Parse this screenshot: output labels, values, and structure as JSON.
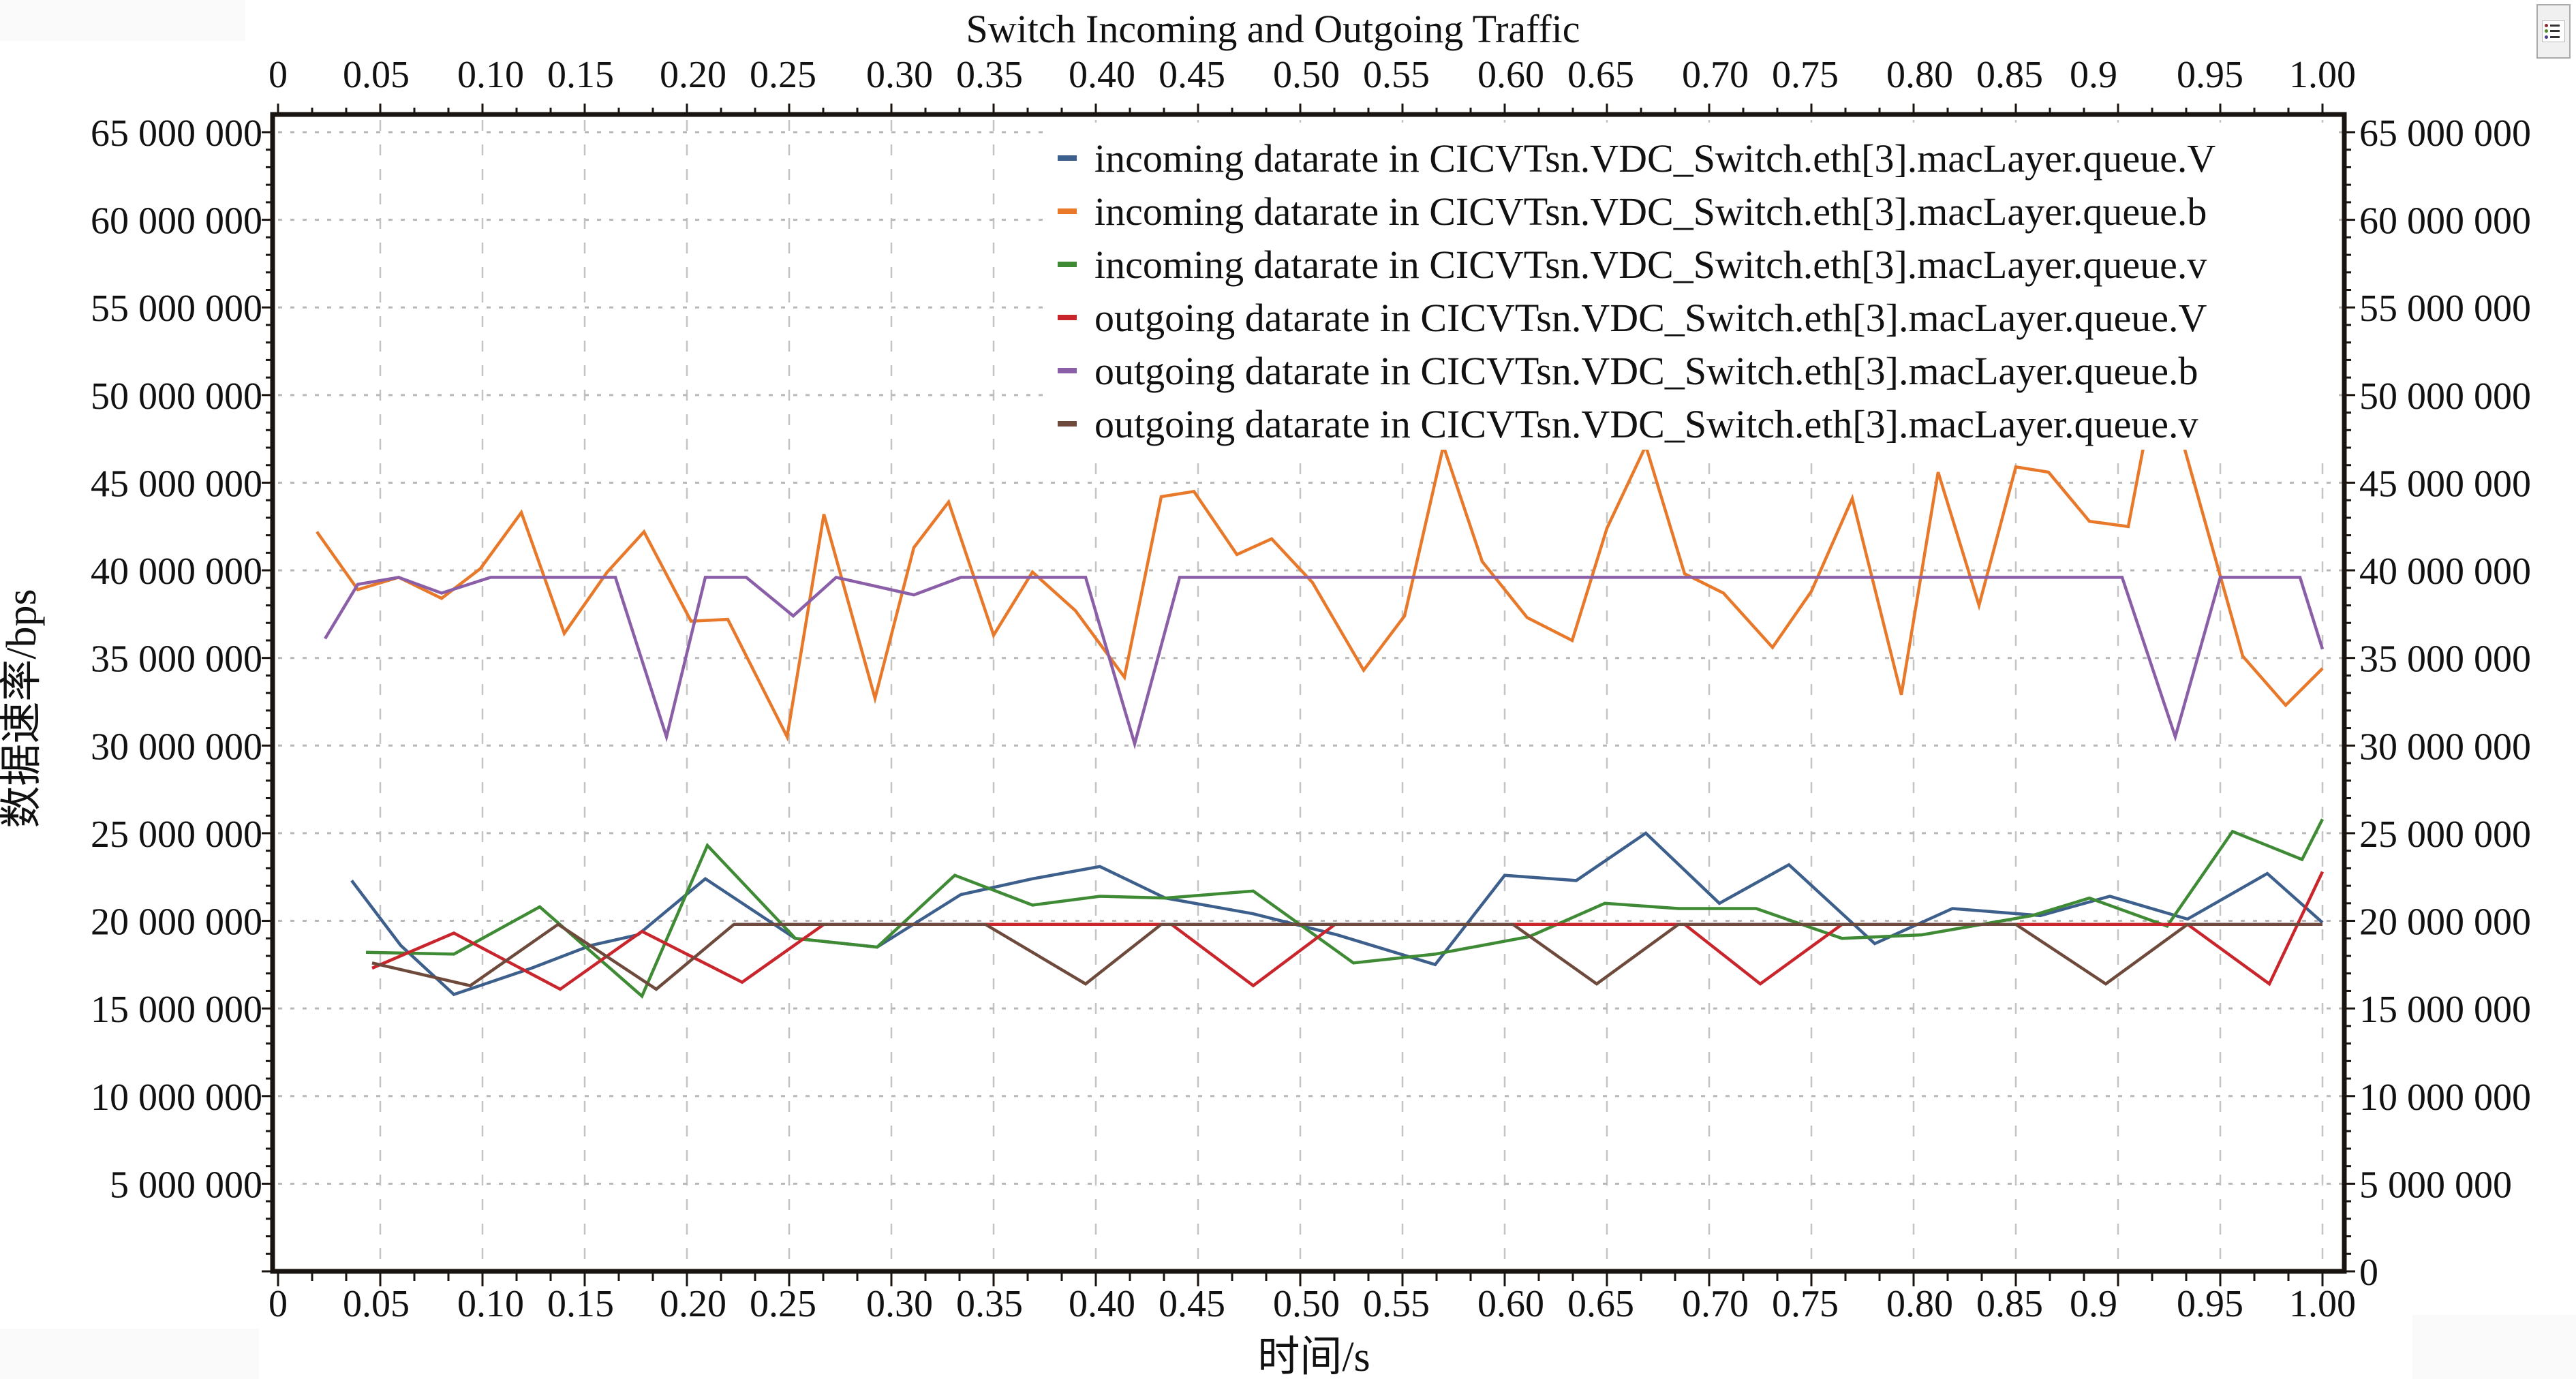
{
  "toolbar": {
    "legend_toggle_icon": "legend-list-icon"
  },
  "chart_data": {
    "type": "line",
    "title": "Switch Incoming and Outgoing Traffic",
    "xlabel": "时间/s",
    "ylabel": "数据速率/bps",
    "xlim": [
      0,
      1.0
    ],
    "ylim": [
      0,
      65000000
    ],
    "grid": true,
    "legend_position": "top-right",
    "x_tick_labels": [
      "0",
      "0.05",
      "0.10",
      "0.15",
      "0.20",
      "0.25",
      "0.30",
      "0.35",
      "0.40",
      "0.45",
      "0.50",
      "0.55",
      "0.60",
      "0.65",
      "0.70",
      "0.75",
      "0.80",
      "0.85",
      "0.9",
      "0.95",
      "1.00"
    ],
    "x_ticks": [
      0,
      0.05,
      0.1,
      0.15,
      0.2,
      0.25,
      0.3,
      0.35,
      0.4,
      0.45,
      0.5,
      0.55,
      0.6,
      0.65,
      0.7,
      0.75,
      0.8,
      0.85,
      0.9,
      0.95,
      1.0
    ],
    "x_tick_label_positions": [
      0,
      0.048,
      0.104,
      0.148,
      0.203,
      0.247,
      0.304,
      0.348,
      0.403,
      0.447,
      0.503,
      0.547,
      0.603,
      0.647,
      0.703,
      0.747,
      0.803,
      0.847,
      0.888,
      0.945,
      1.0
    ],
    "y_ticks": [
      5000000,
      10000000,
      15000000,
      20000000,
      25000000,
      30000000,
      35000000,
      40000000,
      45000000,
      50000000,
      55000000,
      60000000,
      65000000
    ],
    "y_tick_labels": [
      "5 000 000",
      "10 000 000",
      "15 000 000",
      "20 000 000",
      "25 000 000",
      "30 000 000",
      "35 000 000",
      "40 000 000",
      "45 000 000",
      "50 000 000",
      "55 000 000",
      "60 000 000",
      "65 000 000"
    ],
    "y_right_zero_label": "0",
    "series": [
      {
        "name": "incoming datarate in CICVTsn.VDC_Switch.eth[3].macLayer.queue.V",
        "color": "#3d5f8c",
        "x": [
          0.036,
          0.06,
          0.086,
          0.124,
          0.153,
          0.176,
          0.209,
          0.253,
          0.293,
          0.334,
          0.369,
          0.402,
          0.434,
          0.477,
          0.518,
          0.566,
          0.6,
          0.635,
          0.669,
          0.705,
          0.739,
          0.781,
          0.819,
          0.862,
          0.896,
          0.934,
          0.973,
          1.0
        ],
        "values": [
          22300000,
          18600000,
          15800000,
          17300000,
          18600000,
          19200000,
          22400000,
          19000000,
          18500000,
          21500000,
          22400000,
          23100000,
          21300000,
          20400000,
          19200000,
          17500000,
          22600000,
          22300000,
          25000000,
          21000000,
          23200000,
          18700000,
          20700000,
          20300000,
          21400000,
          20100000,
          22700000,
          19900000
        ]
      },
      {
        "name": "incoming datarate in CICVTsn.VDC_Switch.eth[3].macLayer.queue.b",
        "color": "#e8792a",
        "x": [
          0.019,
          0.039,
          0.059,
          0.08,
          0.099,
          0.119,
          0.14,
          0.161,
          0.179,
          0.202,
          0.22,
          0.249,
          0.267,
          0.292,
          0.311,
          0.328,
          0.35,
          0.369,
          0.39,
          0.414,
          0.432,
          0.448,
          0.469,
          0.486,
          0.506,
          0.531,
          0.551,
          0.57,
          0.589,
          0.611,
          0.633,
          0.65,
          0.669,
          0.688,
          0.707,
          0.731,
          0.75,
          0.77,
          0.794,
          0.812,
          0.832,
          0.85,
          0.866,
          0.886,
          0.905,
          0.914,
          0.93,
          0.961,
          0.982,
          1.0
        ],
        "values": [
          42200000,
          38900000,
          39600000,
          38400000,
          40100000,
          43300000,
          36400000,
          39900000,
          42200000,
          37100000,
          37200000,
          30500000,
          43200000,
          32700000,
          41300000,
          43900000,
          36300000,
          39900000,
          37700000,
          33900000,
          44200000,
          44500000,
          40900000,
          41800000,
          39300000,
          34300000,
          37400000,
          47100000,
          40500000,
          37300000,
          36000000,
          42400000,
          47100000,
          39800000,
          38700000,
          35600000,
          38800000,
          44100000,
          32900000,
          45600000,
          38000000,
          45900000,
          45600000,
          42800000,
          42500000,
          48000000,
          48000000,
          35100000,
          32300000,
          34400000
        ]
      },
      {
        "name": "incoming datarate in CICVTsn.VDC_Switch.eth[3].macLayer.queue.v",
        "color": "#3f8a34",
        "x": [
          0.043,
          0.086,
          0.128,
          0.178,
          0.21,
          0.253,
          0.293,
          0.331,
          0.369,
          0.402,
          0.434,
          0.477,
          0.526,
          0.566,
          0.612,
          0.649,
          0.685,
          0.723,
          0.765,
          0.804,
          0.858,
          0.886,
          0.924,
          0.956,
          0.99,
          1.0
        ],
        "values": [
          18200000,
          18100000,
          20800000,
          15700000,
          24300000,
          19000000,
          18500000,
          22600000,
          20900000,
          21400000,
          21300000,
          21700000,
          17600000,
          18100000,
          19100000,
          21000000,
          20700000,
          20700000,
          19000000,
          19200000,
          20300000,
          21300000,
          19700000,
          25100000,
          23500000,
          25800000
        ]
      },
      {
        "name": "outgoing datarate in CICVTsn.VDC_Switch.eth[3].macLayer.queue.V",
        "color": "#c8262c",
        "x": [
          0.046,
          0.086,
          0.138,
          0.178,
          0.227,
          0.267,
          0.437,
          0.477,
          0.517,
          0.688,
          0.725,
          0.765,
          0.934,
          0.974,
          1.0
        ],
        "values": [
          17300000,
          19300000,
          16100000,
          19400000,
          16500000,
          19800000,
          19800000,
          16300000,
          19800000,
          19800000,
          16400000,
          19800000,
          19800000,
          16400000,
          22800000
        ]
      },
      {
        "name": "outgoing datarate in CICVTsn.VDC_Switch.eth[3].macLayer.queue.b",
        "color": "#8a5fa8",
        "x": [
          0.023,
          0.039,
          0.059,
          0.08,
          0.104,
          0.165,
          0.19,
          0.209,
          0.229,
          0.252,
          0.273,
          0.311,
          0.334,
          0.395,
          0.419,
          0.441,
          0.902,
          0.928,
          0.95,
          0.989,
          1.0
        ],
        "values": [
          36100000,
          39200000,
          39600000,
          38700000,
          39600000,
          39600000,
          30500000,
          39600000,
          39600000,
          37400000,
          39600000,
          38600000,
          39600000,
          39600000,
          30100000,
          39600000,
          39600000,
          30500000,
          39600000,
          39600000,
          35500000
        ]
      },
      {
        "name": "outgoing datarate in CICVTsn.VDC_Switch.eth[3].macLayer.queue.v",
        "color": "#6e4a3c",
        "x": [
          0.046,
          0.094,
          0.137,
          0.185,
          0.223,
          0.346,
          0.395,
          0.432,
          0.604,
          0.645,
          0.685,
          0.85,
          0.894,
          0.934,
          1.0
        ],
        "values": [
          17600000,
          16300000,
          19800000,
          16100000,
          19800000,
          19800000,
          16400000,
          19800000,
          19800000,
          16400000,
          19800000,
          19800000,
          16400000,
          19800000,
          19800000
        ]
      }
    ]
  }
}
